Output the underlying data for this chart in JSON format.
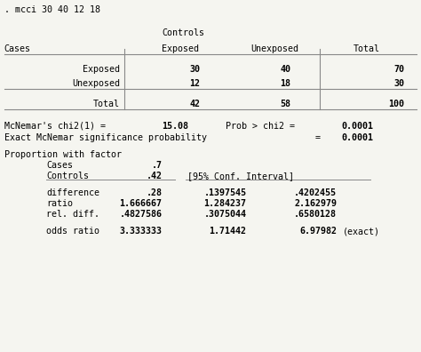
{
  "bg_color": "#f5f5f0",
  "text_color": "#000000",
  "font_family": "DejaVu Sans Mono",
  "title_line": ". mcci 30 40 12 18",
  "table_header_controls": "Controls",
  "table_header_exposed": "Exposed",
  "table_header_unexposed": "Unexposed",
  "table_header_total": "Total",
  "table_header_cases": "Cases",
  "row1_label": "Exposed",
  "row2_label": "Unexposed",
  "row_total": "Total",
  "cell_11": "30",
  "cell_12": "40",
  "cell_13": "70",
  "cell_21": "12",
  "cell_22": "18",
  "cell_23": "30",
  "cell_t1": "42",
  "cell_t2": "58",
  "cell_t3": "100",
  "stat_line1a": "McNemar's chi2(1) =",
  "stat_line1b": "15.08",
  "stat_line1c": "Prob > chi2 =",
  "stat_line1d": "0.0001",
  "stat_line2a": "Exact McNemar significance probability",
  "stat_line2b": "=",
  "stat_line2c": "0.0001",
  "prop_header": "Proportion with factor",
  "prop_cases_label": "Cases",
  "prop_cases_val": ".7",
  "prop_controls_label": "Controls",
  "prop_controls_val": ".42",
  "prop_ci": "[95% Conf. Interval]",
  "diff_label": "difference",
  "diff_val": ".28",
  "diff_lo": ".1397545",
  "diff_hi": ".4202455",
  "ratio_label": "ratio",
  "ratio_val": "1.666667",
  "ratio_lo": "1.284237",
  "ratio_hi": "2.162979",
  "reldiff_label": "rel. diff.",
  "reldiff_val": ".4827586",
  "reldiff_lo": ".3075044",
  "reldiff_hi": ".6580128",
  "or_label": "odds ratio",
  "or_val": "3.333333",
  "or_lo": "1.71442",
  "or_hi": "6.97982",
  "or_note": "(exact)"
}
